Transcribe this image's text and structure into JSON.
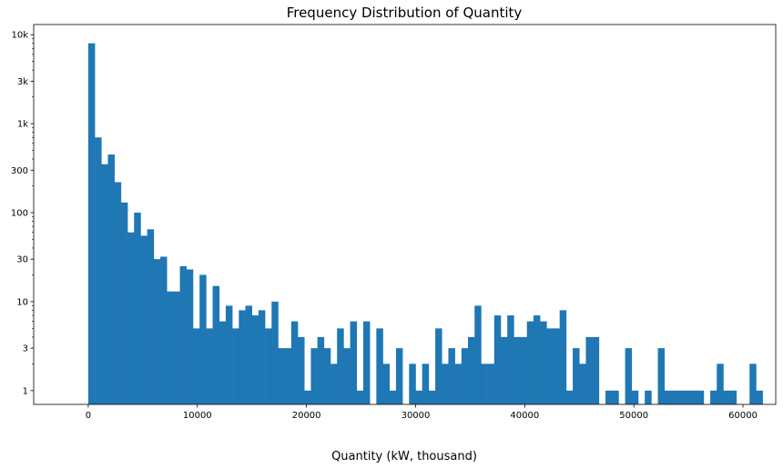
{
  "chart_data": {
    "type": "bar",
    "subtype": "histogram",
    "title": "Frequency Distribution of Quantity",
    "xlabel": "Quantity (kW, thousand)",
    "ylabel": "",
    "xlim": [
      -5000,
      63000
    ],
    "ylim": [
      0.7,
      13000
    ],
    "y_scale": "log",
    "x_ticks": [
      0,
      10000,
      20000,
      30000,
      40000,
      50000,
      60000
    ],
    "x_tick_labels": [
      "0",
      "10000",
      "20000",
      "30000",
      "40000",
      "50000",
      "60000"
    ],
    "y_ticks": [
      1,
      3,
      10,
      30,
      100,
      300,
      1000,
      3000,
      10000
    ],
    "y_tick_labels": [
      "1",
      "3",
      "10",
      "30",
      "100",
      "300",
      "1k",
      "3k",
      "10k"
    ],
    "grid": false,
    "bar_color": "#1f77b4",
    "bin_start": 0,
    "bin_width": 600,
    "counts": [
      8000,
      700,
      350,
      450,
      220,
      130,
      60,
      100,
      55,
      65,
      30,
      32,
      13,
      13,
      25,
      23,
      5,
      20,
      5,
      15,
      6,
      9,
      5,
      8,
      9,
      7,
      8,
      5,
      10,
      3,
      3,
      6,
      4,
      1,
      3,
      4,
      3,
      2,
      5,
      3,
      6,
      1,
      6,
      0,
      5,
      2,
      1,
      3,
      0,
      2,
      1,
      2,
      1,
      5,
      2,
      3,
      2,
      3,
      4,
      9,
      2,
      2,
      7,
      4,
      7,
      4,
      4,
      6,
      7,
      6,
      5,
      5,
      8,
      1,
      3,
      2,
      4,
      4,
      0,
      1,
      1,
      0,
      3,
      1,
      0,
      1,
      0,
      3,
      1,
      1,
      1,
      1,
      1,
      1,
      0,
      1,
      2,
      1,
      1,
      0,
      0,
      2,
      1
    ]
  }
}
